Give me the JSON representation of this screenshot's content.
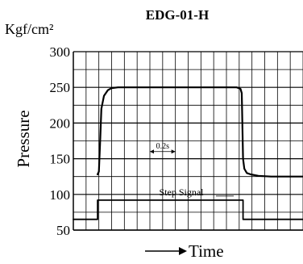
{
  "chart_data": {
    "type": "line",
    "title": "EDG-01-H",
    "unit_label": "Kgf/cm²",
    "ylabel": "Pressure",
    "xlabel": "Time",
    "ylim": [
      50,
      300
    ],
    "yticks": [
      50,
      100,
      150,
      200,
      250,
      300
    ],
    "x_unit": "s",
    "xlim": [
      0,
      1.8
    ],
    "x_grid_step": 0.1,
    "grid": true,
    "annotation_interval": {
      "label": "0.2s",
      "x_start": 0.6,
      "x_end": 0.8,
      "y": 160
    },
    "series": [
      {
        "name": "Pressure",
        "x": [
          0.19,
          0.2,
          0.21,
          0.22,
          0.24,
          0.27,
          0.3,
          0.35,
          0.45,
          0.7,
          1.0,
          1.2,
          1.28,
          1.31,
          1.32,
          1.33,
          1.34,
          1.36,
          1.39,
          1.45,
          1.55,
          1.7,
          1.8
        ],
        "values": [
          128,
          132,
          175,
          220,
          238,
          246,
          249,
          250,
          250,
          250,
          250,
          250,
          250,
          248,
          242,
          150,
          136,
          130,
          128,
          126,
          125,
          125,
          125
        ]
      },
      {
        "name": "Step Signal",
        "x": [
          0.0,
          0.19,
          0.19,
          1.33,
          1.33,
          1.8
        ],
        "values": [
          65,
          65,
          92,
          92,
          65,
          65
        ]
      }
    ]
  },
  "colors": {
    "background": "#ffffff",
    "grid": "#000000",
    "line": "#000000"
  }
}
